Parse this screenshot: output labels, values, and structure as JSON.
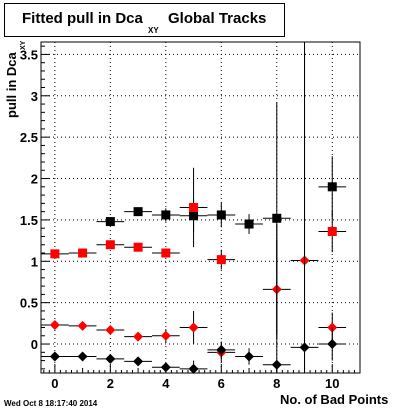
{
  "title": {
    "main": "Fitted pull in Dca",
    "sub": "XY",
    "tail": "Global Tracks"
  },
  "axes": {
    "ylabel": "pull in Dca",
    "ylabel_sub": "XY",
    "xlabel": "No. of Bad Points"
  },
  "timestamp": "Wed Oct  8 18:17:40 2014",
  "colors": {
    "black_series": "#000000",
    "red_series": "#ff0000",
    "frame": "#000000",
    "grid": "#000000"
  },
  "chart_data": {
    "type": "scatter",
    "xlim": [
      -0.5,
      11
    ],
    "ylim": [
      -0.35,
      3.65
    ],
    "x_ticks": [
      0,
      2,
      4,
      6,
      8,
      10
    ],
    "y_ticks": [
      0,
      0.5,
      1,
      1.5,
      2,
      2.5,
      3,
      3.5
    ],
    "grid": true,
    "series": [
      {
        "marker": "square",
        "color": "#000000",
        "points": [
          {
            "x": 2,
            "y": 1.48,
            "yerr": 0.0
          },
          {
            "x": 3,
            "y": 1.6,
            "yerr": 0.05
          },
          {
            "x": 4,
            "y": 1.56,
            "yerr": 0.08
          },
          {
            "x": 5,
            "y": 1.55,
            "yerr": 0.2
          },
          {
            "x": 6,
            "y": 1.56,
            "yerr": 0.15
          },
          {
            "x": 7,
            "y": 1.45,
            "yerr": 0.12
          },
          {
            "x": 8,
            "y": 1.52,
            "yerr": 1.4
          },
          {
            "x": 10,
            "y": 1.9,
            "yerr": 0.37
          }
        ]
      },
      {
        "marker": "square",
        "color": "#ff0000",
        "points": [
          {
            "x": 0,
            "y": 1.09,
            "yerr": 0.0
          },
          {
            "x": 1,
            "y": 1.1,
            "yerr": 0.0
          },
          {
            "x": 2,
            "y": 1.2,
            "yerr": 0.0
          },
          {
            "x": 3,
            "y": 1.17,
            "yerr": 0.0
          },
          {
            "x": 4,
            "y": 1.1,
            "yerr": 0.0
          },
          {
            "x": 5,
            "y": 1.65,
            "yerr": 0.48
          },
          {
            "x": 6,
            "y": 1.02,
            "yerr": 0.12
          },
          {
            "x": 10,
            "y": 1.36,
            "yerr": 0.25
          }
        ]
      },
      {
        "marker": "diamond",
        "color": "#ff0000",
        "points": [
          {
            "x": 0,
            "y": 0.23,
            "yerr": 0.0
          },
          {
            "x": 1,
            "y": 0.22,
            "yerr": 0.0
          },
          {
            "x": 2,
            "y": 0.17,
            "yerr": 0.0
          },
          {
            "x": 3,
            "y": 0.09,
            "yerr": 0.0
          },
          {
            "x": 4,
            "y": 0.1,
            "yerr": 0.08
          },
          {
            "x": 5,
            "y": 0.2,
            "yerr": 0.2
          },
          {
            "x": 6,
            "y": -0.1,
            "yerr": 0.12
          },
          {
            "x": 8,
            "y": 0.66,
            "yerr": 0.6
          },
          {
            "x": 9,
            "y": 1.01,
            "yerr": 2.6
          },
          {
            "x": 10,
            "y": 0.2,
            "yerr": 0.18
          }
        ]
      },
      {
        "marker": "diamond",
        "color": "#000000",
        "points": [
          {
            "x": 0,
            "y": -0.15,
            "yerr": 0.0
          },
          {
            "x": 1,
            "y": -0.15,
            "yerr": 0.0
          },
          {
            "x": 2,
            "y": -0.18,
            "yerr": 0.0
          },
          {
            "x": 3,
            "y": -0.21,
            "yerr": 0.0
          },
          {
            "x": 4,
            "y": -0.28,
            "yerr": 0.05
          },
          {
            "x": 5,
            "y": -0.3,
            "yerr": 0.1
          },
          {
            "x": 6,
            "y": -0.07,
            "yerr": 0.1
          },
          {
            "x": 7,
            "y": -0.15,
            "yerr": 0.1
          },
          {
            "x": 8,
            "y": -0.25,
            "yerr": 1.7
          },
          {
            "x": 9,
            "y": -0.04,
            "yerr": 3.7
          },
          {
            "x": 10,
            "y": 0.0,
            "yerr": 0.2
          }
        ]
      }
    ]
  }
}
